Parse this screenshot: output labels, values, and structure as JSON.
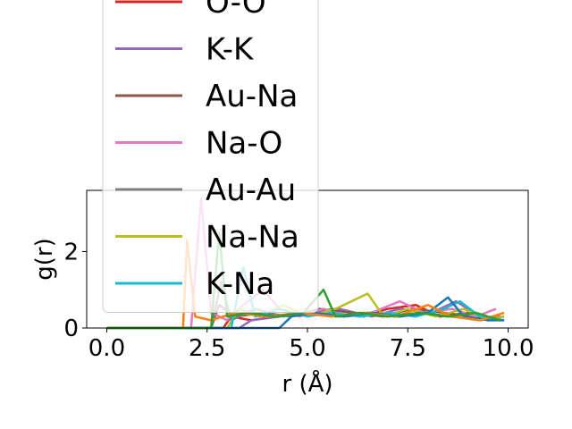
{
  "chart_data": {
    "type": "line",
    "xlabel": "r (Å)",
    "ylabel": "g(r)",
    "xlim": [
      -0.5,
      10.5
    ],
    "ylim": [
      0,
      3.6
    ],
    "xticks": [
      "0.0",
      "2.5",
      "5.0",
      "7.5",
      "10.0"
    ],
    "yticks": [
      "0",
      "2"
    ],
    "grid": false,
    "legend_position": "upper-left, extending above the plot",
    "series": [
      {
        "name": "O-O",
        "color": "#d62728",
        "points": [
          [
            0,
            0
          ],
          [
            2.9,
            0
          ],
          [
            3.1,
            0.3
          ],
          [
            3.6,
            0.2
          ],
          [
            4.2,
            0.3
          ],
          [
            5.0,
            0.4
          ],
          [
            5.7,
            0.5
          ],
          [
            6.4,
            0.3
          ],
          [
            7.0,
            0.5
          ],
          [
            7.7,
            0.6
          ],
          [
            8.3,
            0.3
          ],
          [
            9.0,
            0.4
          ],
          [
            9.5,
            0.2
          ],
          [
            9.8,
            0.3
          ]
        ]
      },
      {
        "name": "K-K",
        "color": "#9467bd",
        "points": [
          [
            0,
            0
          ],
          [
            3.3,
            0
          ],
          [
            3.6,
            0.2
          ],
          [
            4.3,
            0.3
          ],
          [
            5.0,
            0.4
          ],
          [
            5.8,
            0.5
          ],
          [
            6.6,
            0.3
          ],
          [
            7.3,
            0.5
          ],
          [
            8.1,
            0.4
          ],
          [
            8.7,
            0.7
          ],
          [
            9.3,
            0.3
          ],
          [
            9.8,
            0.2
          ]
        ]
      },
      {
        "name": "Au-Na",
        "color": "#8c564b",
        "points": [
          [
            0,
            0
          ],
          [
            2.6,
            0
          ],
          [
            2.8,
            0.6
          ],
          [
            3.2,
            0.3
          ],
          [
            3.9,
            0.4
          ],
          [
            4.6,
            0.3
          ],
          [
            5.3,
            0.5
          ],
          [
            6.1,
            0.4
          ],
          [
            6.9,
            0.3
          ],
          [
            7.6,
            0.5
          ],
          [
            8.4,
            0.4
          ],
          [
            9.1,
            0.3
          ],
          [
            9.8,
            0.2
          ]
        ]
      },
      {
        "name": "Na-O",
        "color": "#e377c2",
        "points": [
          [
            0,
            0
          ],
          [
            2.1,
            0
          ],
          [
            2.35,
            3.4
          ],
          [
            2.6,
            0.4
          ],
          [
            3.0,
            0.2
          ],
          [
            3.4,
            0.6
          ],
          [
            3.9,
            1.0
          ],
          [
            4.3,
            0.5
          ],
          [
            4.8,
            0.3
          ],
          [
            5.4,
            0.5
          ],
          [
            6.0,
            0.3
          ],
          [
            6.6,
            0.4
          ],
          [
            7.3,
            0.7
          ],
          [
            7.9,
            0.4
          ],
          [
            8.6,
            0.5
          ],
          [
            9.2,
            0.3
          ],
          [
            9.7,
            0.5
          ]
        ]
      },
      {
        "name": "Au-Au",
        "color": "#7f7f7f",
        "points": [
          [
            0,
            0
          ],
          [
            2.6,
            0
          ],
          [
            2.85,
            1.2
          ],
          [
            3.1,
            0.2
          ],
          [
            3.7,
            0.5
          ],
          [
            4.4,
            0.3
          ],
          [
            5.0,
            0.4
          ],
          [
            5.8,
            0.3
          ],
          [
            6.5,
            0.4
          ],
          [
            7.2,
            0.3
          ],
          [
            7.9,
            0.4
          ],
          [
            8.6,
            0.3
          ],
          [
            9.3,
            0.2
          ],
          [
            9.9,
            0.3
          ]
        ]
      },
      {
        "name": "Na-Na",
        "color": "#bcbd22",
        "points": [
          [
            0,
            0
          ],
          [
            3.0,
            0
          ],
          [
            3.3,
            0.5
          ],
          [
            3.8,
            0.3
          ],
          [
            4.4,
            0.6
          ],
          [
            5.0,
            0.3
          ],
          [
            5.7,
            0.5
          ],
          [
            6.5,
            0.9
          ],
          [
            6.9,
            0.3
          ],
          [
            7.5,
            0.5
          ],
          [
            8.2,
            0.3
          ],
          [
            8.9,
            0.5
          ],
          [
            9.5,
            0.2
          ],
          [
            9.9,
            0.3
          ]
        ]
      },
      {
        "name": "K-Na",
        "color": "#17becf",
        "points": [
          [
            0,
            0
          ],
          [
            3.1,
            0
          ],
          [
            3.4,
            1.6
          ],
          [
            3.7,
            0.3
          ],
          [
            4.3,
            0.5
          ],
          [
            5.0,
            0.3
          ],
          [
            5.6,
            0.4
          ],
          [
            6.3,
            0.3
          ],
          [
            7.0,
            0.4
          ],
          [
            7.7,
            0.3
          ],
          [
            8.4,
            0.5
          ],
          [
            8.8,
            0.7
          ],
          [
            9.3,
            0.3
          ],
          [
            9.9,
            0.2
          ]
        ]
      },
      {
        "name": "",
        "color": "#1f77b4",
        "points": [
          [
            0,
            0
          ],
          [
            4.3,
            0
          ],
          [
            4.6,
            0.3
          ],
          [
            5.2,
            0.4
          ],
          [
            5.9,
            0.3
          ],
          [
            6.6,
            0.4
          ],
          [
            7.3,
            0.3
          ],
          [
            8.0,
            0.4
          ],
          [
            8.5,
            0.8
          ],
          [
            8.9,
            0.3
          ],
          [
            9.5,
            0.2
          ],
          [
            9.9,
            0.2
          ]
        ]
      },
      {
        "name": "",
        "color": "#ff7f0e",
        "points": [
          [
            0,
            0
          ],
          [
            1.9,
            0
          ],
          [
            2.0,
            2.3
          ],
          [
            2.2,
            0.3
          ],
          [
            2.6,
            0.2
          ],
          [
            3.2,
            0.4
          ],
          [
            4.0,
            0.3
          ],
          [
            4.8,
            0.4
          ],
          [
            5.6,
            0.3
          ],
          [
            6.4,
            0.4
          ],
          [
            7.2,
            0.3
          ],
          [
            8.0,
            0.6
          ],
          [
            8.6,
            0.3
          ],
          [
            9.3,
            0.2
          ],
          [
            9.9,
            0.4
          ]
        ]
      },
      {
        "name": "",
        "color": "#2ca02c",
        "points": [
          [
            0,
            0
          ],
          [
            2.6,
            0
          ],
          [
            2.8,
            2.5
          ],
          [
            3.0,
            0.3
          ],
          [
            3.5,
            0.4
          ],
          [
            4.2,
            0.3
          ],
          [
            4.9,
            0.4
          ],
          [
            5.4,
            1.0
          ],
          [
            5.7,
            0.3
          ],
          [
            6.3,
            0.4
          ],
          [
            7.0,
            0.3
          ],
          [
            7.8,
            0.4
          ],
          [
            8.5,
            0.3
          ],
          [
            9.2,
            0.4
          ],
          [
            9.8,
            0.2
          ]
        ]
      }
    ]
  }
}
